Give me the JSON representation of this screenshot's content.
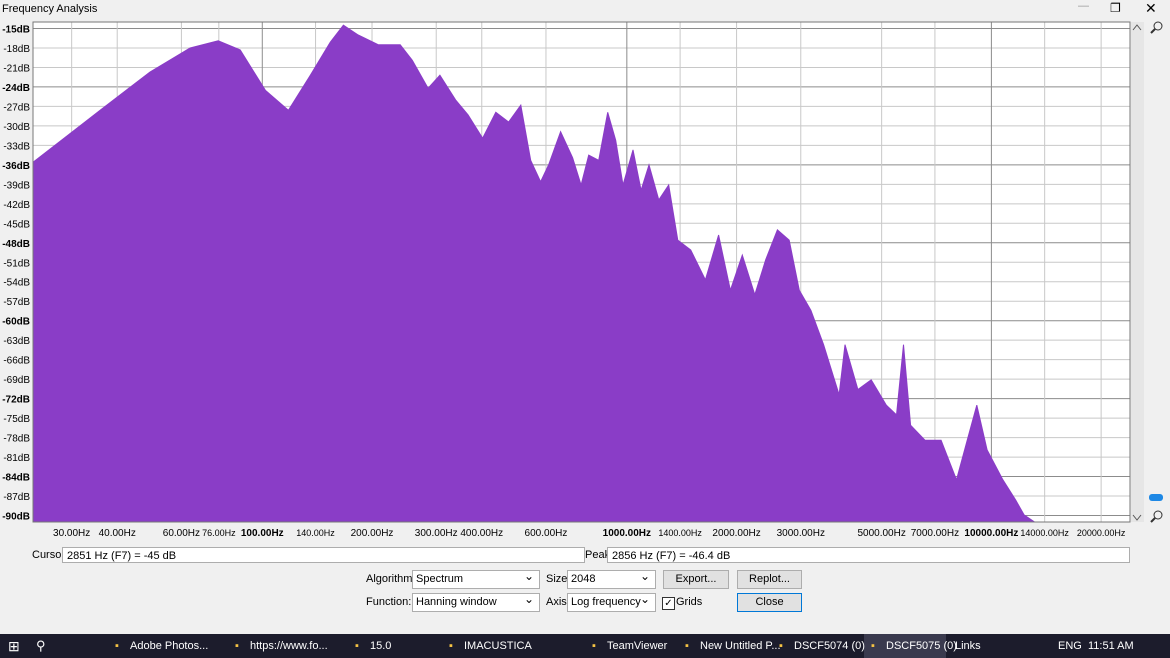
{
  "window": {
    "title": "Frequency Analysis"
  },
  "chart_data": {
    "type": "area",
    "xscale": "log",
    "grid": true,
    "color": "#8a3dc7",
    "xlim": [
      23.5,
      24000
    ],
    "ylim": [
      -91,
      -14
    ],
    "x": [
      23.5,
      35.9,
      49.2,
      63.4,
      75.7,
      87.0,
      101.9,
      117.9,
      135.5,
      153.7,
      166.9,
      183.3,
      208.0,
      239,
      258,
      285,
      307,
      339,
      367,
      402,
      437,
      474,
      512,
      545,
      580,
      610,
      658,
      710,
      749,
      786,
      837,
      886,
      932,
      976,
      1040,
      1094,
      1150,
      1224,
      1303,
      1380,
      1497,
      1643,
      1785,
      1924,
      2073,
      2244,
      2404,
      2589,
      2789,
      2972,
      3198,
      3466,
      3821,
      3966,
      4304,
      4680,
      5148,
      5490,
      5741,
      6004,
      6574,
      7277,
      8020,
      8582,
      9118,
      9734,
      10753,
      11649,
      12296,
      13138
    ],
    "values": [
      -35.6,
      -27.6,
      -21.7,
      -18.0,
      -16.9,
      -18.3,
      -24.5,
      -27.6,
      -22.2,
      -17.1,
      -14.5,
      -16.0,
      -17.5,
      -17.5,
      -19.9,
      -24.2,
      -22.2,
      -26.0,
      -28.3,
      -31.9,
      -27.9,
      -29.4,
      -26.8,
      -35.3,
      -38.6,
      -36.0,
      -30.9,
      -34.9,
      -39.1,
      -34.5,
      -35.3,
      -27.9,
      -32.2,
      -39.1,
      -33.7,
      -39.9,
      -36.0,
      -41.4,
      -39.1,
      -47.6,
      -49.1,
      -53.7,
      -46.8,
      -55.3,
      -49.9,
      -56.0,
      -50.6,
      -46.0,
      -47.6,
      -55.3,
      -58.4,
      -63.7,
      -71.4,
      -63.7,
      -70.6,
      -69.1,
      -73.0,
      -74.5,
      -63.7,
      -76.1,
      -78.4,
      -78.4,
      -84.5,
      -78.4,
      -73.0,
      -79.9,
      -84.5,
      -87.6,
      -89.9,
      -91
    ],
    "xticks": [
      {
        "value": 30,
        "label": "30.00Hz"
      },
      {
        "value": 40,
        "label": "40.00Hz"
      },
      {
        "value": 60,
        "label": "60.00Hz"
      },
      {
        "value": 76,
        "label": "76.00Hz"
      },
      {
        "value": 100,
        "label": "100.00Hz"
      },
      {
        "value": 140,
        "label": "140.00Hz"
      },
      {
        "value": 200,
        "label": "200.00Hz"
      },
      {
        "value": 300,
        "label": "300.00Hz"
      },
      {
        "value": 400,
        "label": "400.00Hz"
      },
      {
        "value": 600,
        "label": "600.00Hz"
      },
      {
        "value": 1000,
        "label": "1000.00Hz"
      },
      {
        "value": 1400,
        "label": "1400.00Hz"
      },
      {
        "value": 2000,
        "label": "2000.00Hz"
      },
      {
        "value": 3000,
        "label": "3000.00Hz"
      },
      {
        "value": 5000,
        "label": "5000.00Hz"
      },
      {
        "value": 7000,
        "label": "7000.00Hz"
      },
      {
        "value": 10000,
        "label": "10000.00Hz"
      },
      {
        "value": 14000,
        "label": "14000.00Hz"
      },
      {
        "value": 20000,
        "label": "20000.00Hz"
      }
    ],
    "yticks": [
      {
        "value": -15,
        "label": "-15dB"
      },
      {
        "value": -18,
        "label": "-18dB"
      },
      {
        "value": -21,
        "label": "-21dB"
      },
      {
        "value": -24,
        "label": "-24dB"
      },
      {
        "value": -27,
        "label": "-27dB"
      },
      {
        "value": -30,
        "label": "-30dB"
      },
      {
        "value": -33,
        "label": "-33dB"
      },
      {
        "value": -36,
        "label": "-36dB"
      },
      {
        "value": -39,
        "label": "-39dB"
      },
      {
        "value": -42,
        "label": "-42dB"
      },
      {
        "value": -45,
        "label": "-45dB"
      },
      {
        "value": -48,
        "label": "-48dB"
      },
      {
        "value": -51,
        "label": "-51dB"
      },
      {
        "value": -54,
        "label": "-54dB"
      },
      {
        "value": -57,
        "label": "-57dB"
      },
      {
        "value": -60,
        "label": "-60dB"
      },
      {
        "value": -63,
        "label": "-63dB"
      },
      {
        "value": -66,
        "label": "-66dB"
      },
      {
        "value": -69,
        "label": "-69dB"
      },
      {
        "value": -72,
        "label": "-72dB"
      },
      {
        "value": -75,
        "label": "-75dB"
      },
      {
        "value": -78,
        "label": "-78dB"
      },
      {
        "value": -81,
        "label": "-81dB"
      },
      {
        "value": -84,
        "label": "-84dB"
      },
      {
        "value": -87,
        "label": "-87dB"
      },
      {
        "value": -90,
        "label": "-90dB"
      }
    ]
  },
  "readouts": {
    "cursor_label": "Cursor:",
    "cursor": "2851 Hz (F7) = -45 dB",
    "peak_label": "Peak:",
    "peak": "2856 Hz (F7) = -46.4 dB"
  },
  "controls": {
    "algorithm_label": "Algorithm:",
    "algorithm": "Spectrum",
    "size_label": "Size:",
    "size": "2048",
    "export": "Export...",
    "replot": "Replot...",
    "function_label": "Function:",
    "function": "Hanning window",
    "axis_label": "Axis:",
    "axis": "Log frequency",
    "grids": "Grids",
    "close": "Close"
  },
  "taskbar": {
    "items": [
      "Adobe Photos...",
      "https://www.fo...",
      "15.0",
      "IMACUSTICA",
      "TeamViewer",
      "New Untitled P...",
      "DSCF5074 (0)",
      "DSCF5075 (0)"
    ],
    "links": "Links",
    "language": "ENG",
    "time": "11:51 AM"
  }
}
